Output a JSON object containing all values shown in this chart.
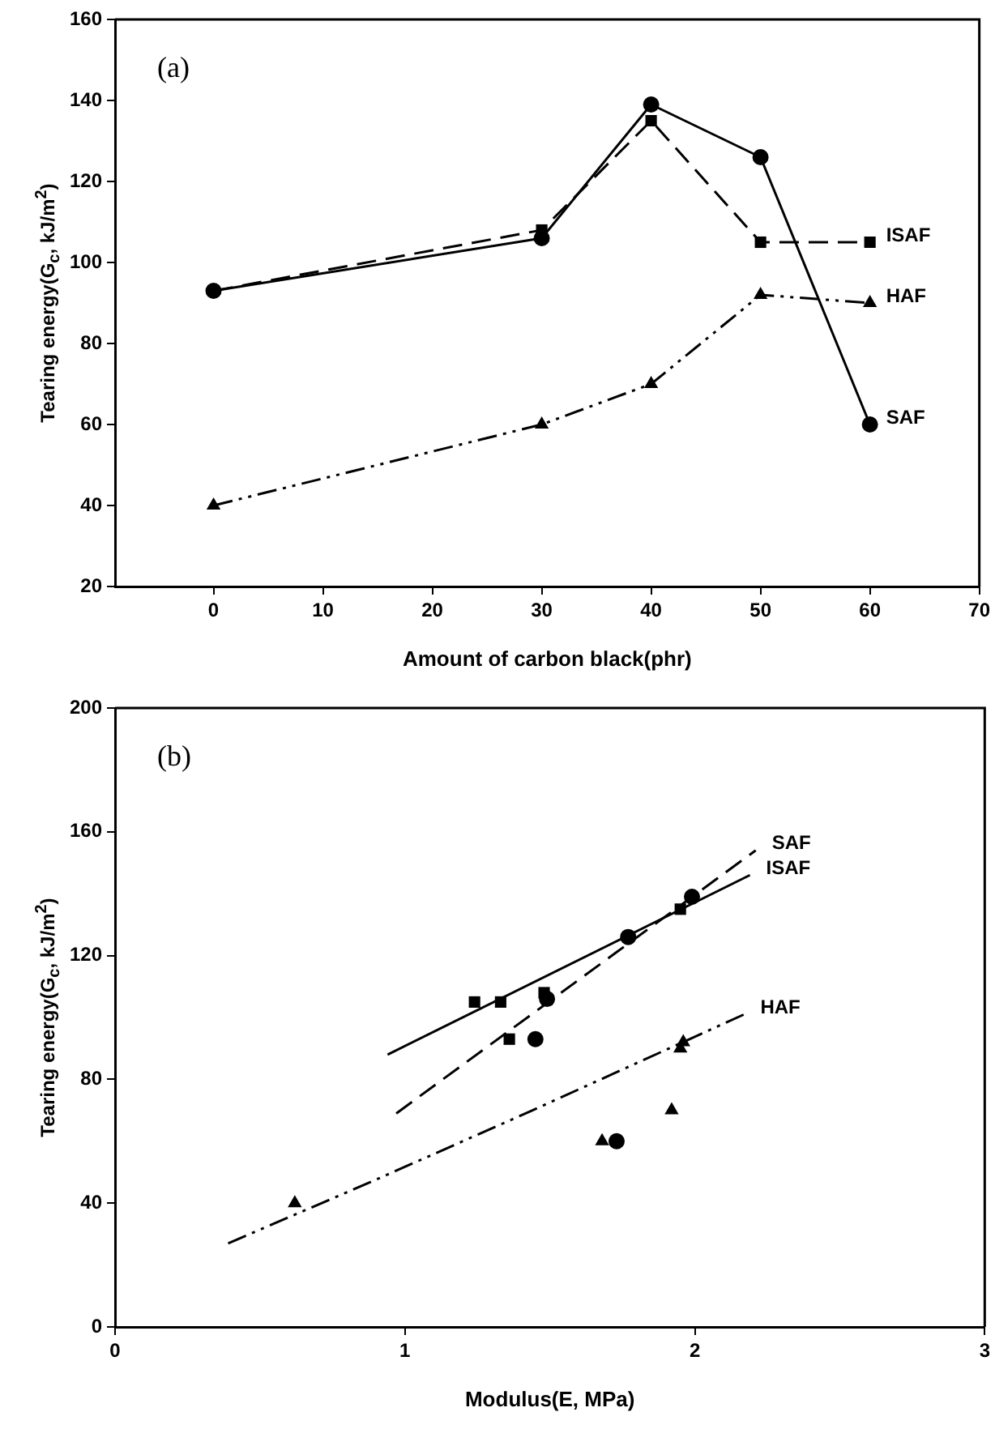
{
  "chart_data": [
    {
      "type": "line",
      "annotations": [
        "(a)"
      ],
      "xlabel": "Amount of carbon black(phr)",
      "ylabel": "Tearing energy(G$_{c}$, kJ/m$^{2}$)",
      "x": [
        0,
        30,
        40,
        50,
        60
      ],
      "xlim": [
        -9,
        70
      ],
      "xticks": [
        0,
        10,
        20,
        30,
        40,
        50,
        60,
        70
      ],
      "ylim": [
        20,
        160
      ],
      "yticks": [
        20,
        40,
        60,
        80,
        100,
        120,
        140,
        160
      ],
      "series": [
        {
          "name": "SAF",
          "color": "#000000",
          "marker": "circle",
          "line_style": "solid",
          "values": [
            93,
            106,
            139,
            126,
            60
          ]
        },
        {
          "name": "ISAF",
          "color": "#000000",
          "marker": "square",
          "line_style": "dashed",
          "values": [
            93,
            108,
            135,
            105,
            105
          ]
        },
        {
          "name": "HAF",
          "color": "#000000",
          "marker": "triangle",
          "line_style": "dotted",
          "values": [
            40,
            60,
            70,
            92,
            90
          ]
        }
      ]
    },
    {
      "type": "scatter",
      "annotations": [
        "(b)"
      ],
      "xlabel": "Modulus(E, MPa)",
      "ylabel": "Tearing energy(G$_{c}$, kJ/m$^{2}$)",
      "xlim": [
        0,
        3
      ],
      "xticks": [
        0,
        1,
        2,
        3
      ],
      "ylim": [
        0,
        200
      ],
      "yticks": [
        0,
        40,
        80,
        120,
        160,
        200
      ],
      "series": [
        {
          "type": "scatter",
          "color": "#000000",
          "marker": "square",
          "x": [
            1.24,
            1.33,
            1.36,
            1.48,
            1.95
          ],
          "values": [
            105,
            105,
            93,
            108,
            135
          ]
        },
        {
          "type": "scatter",
          "color": "#000000",
          "marker": "circle",
          "x": [
            1.45,
            1.49,
            1.77,
            1.99,
            1.73
          ],
          "values": [
            93,
            106,
            126,
            139,
            60
          ]
        },
        {
          "type": "scatter",
          "color": "#000000",
          "marker": "triangle",
          "x": [
            0.62,
            1.68,
            1.92,
            1.96,
            1.95
          ],
          "values": [
            40,
            60,
            70,
            92,
            90
          ]
        },
        {
          "type": "line",
          "name": "SAF",
          "color": "#000000",
          "marker": "none",
          "line_style": "dashed",
          "x": [
            0.97,
            2.21
          ],
          "values": [
            69,
            154
          ]
        },
        {
          "type": "line",
          "name": "ISAF",
          "color": "#000000",
          "marker": "none",
          "line_style": "solid",
          "x": [
            0.94,
            2.19
          ],
          "values": [
            88,
            146
          ]
        },
        {
          "type": "line",
          "name": "HAF",
          "color": "#000000",
          "marker": "none",
          "line_style": "dotted",
          "x": [
            0.39,
            0.91,
            1.44,
            2.17
          ],
          "values": [
            27,
            48,
            70,
            101
          ]
        }
      ]
    }
  ]
}
